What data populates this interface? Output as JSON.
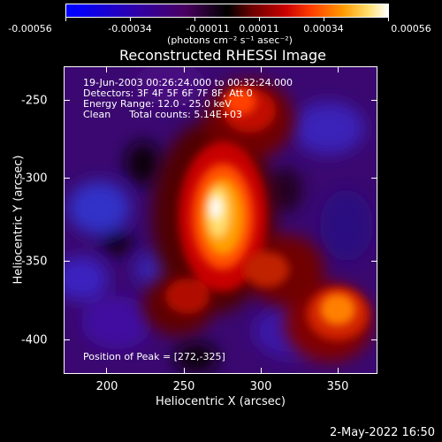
{
  "colorbar": {
    "ticks": [
      "-0.00056",
      "-0.00034",
      "-0.00011",
      "0.00011",
      "0.00034",
      "0.00056"
    ],
    "units": "(photons cm⁻² s⁻¹ asec⁻²)",
    "colors": [
      "#0000ff",
      "#4a0060",
      "#000000",
      "#c80000",
      "#ff9a00",
      "#ffffff"
    ]
  },
  "title": "Reconstructed RHESSI Image",
  "info": {
    "time": "19-Jun-2003 00:26:24.000 to 00:32:24.000",
    "detectors": "Detectors: 3F 4F 5F 6F 7F 8F, Att 0",
    "energy": "Energy Range: 12.0 - 25.0 keV",
    "clean": "Clean      Total counts: 5.14E+03"
  },
  "peak": "Position of Peak = [272,-325]",
  "axes": {
    "xlabel": "Heliocentric X (arcsec)",
    "ylabel": "Heliocentric Y (arcsec)",
    "xticks": [
      "200",
      "250",
      "300",
      "350"
    ],
    "yticks": [
      "-250",
      "-300",
      "-350",
      "-400"
    ]
  },
  "timestamp": "2-May-2022 16:50"
}
